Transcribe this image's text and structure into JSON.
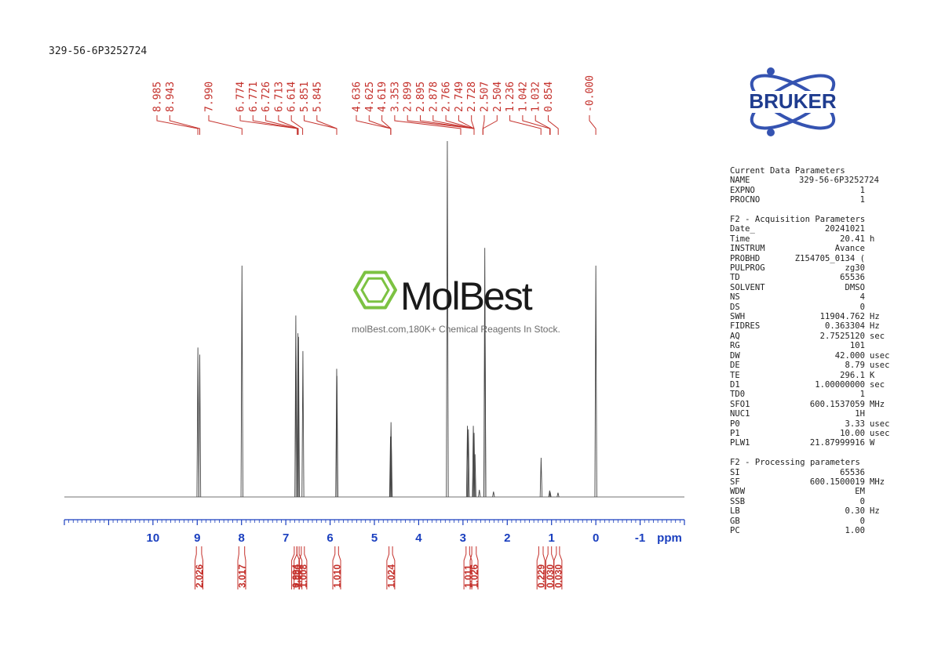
{
  "header": {
    "sample_name": "329-56-6P3252724"
  },
  "logo": {
    "text": "BRUKER",
    "color": "#1f3c8f",
    "ring_color": "#3553b1"
  },
  "watermark": {
    "brand": "MolBest",
    "tagline": "molBest.com,180K+ Chemical Reagents In Stock.",
    "brand_color": "#1a1a1a",
    "icon_color": "#7cc242"
  },
  "parameters": {
    "current": {
      "title": "Current Data Parameters",
      "rows": [
        {
          "key": "NAME",
          "value": "329-56-6P3252724",
          "unit": ""
        },
        {
          "key": "EXPNO",
          "value": "1",
          "unit": ""
        },
        {
          "key": "PROCNO",
          "value": "1",
          "unit": ""
        }
      ]
    },
    "acquisition": {
      "title": "F2 - Acquisition Parameters",
      "rows": [
        {
          "key": "Date_",
          "value": "20241021",
          "unit": ""
        },
        {
          "key": "Time",
          "value": "20.41",
          "unit": "h"
        },
        {
          "key": "INSTRUM",
          "value": "Avance",
          "unit": ""
        },
        {
          "key": "PROBHD",
          "value": "Z154705_0134 (",
          "unit": ""
        },
        {
          "key": "PULPROG",
          "value": "zg30",
          "unit": ""
        },
        {
          "key": "TD",
          "value": "65536",
          "unit": ""
        },
        {
          "key": "SOLVENT",
          "value": "DMSO",
          "unit": ""
        },
        {
          "key": "NS",
          "value": "4",
          "unit": ""
        },
        {
          "key": "DS",
          "value": "0",
          "unit": ""
        },
        {
          "key": "SWH",
          "value": "11904.762",
          "unit": "Hz"
        },
        {
          "key": "FIDRES",
          "value": "0.363304",
          "unit": "Hz"
        },
        {
          "key": "AQ",
          "value": "2.7525120",
          "unit": "sec"
        },
        {
          "key": "RG",
          "value": "101",
          "unit": ""
        },
        {
          "key": "DW",
          "value": "42.000",
          "unit": "usec"
        },
        {
          "key": "DE",
          "value": "8.79",
          "unit": "usec"
        },
        {
          "key": "TE",
          "value": "296.1",
          "unit": "K"
        },
        {
          "key": "D1",
          "value": "1.00000000",
          "unit": "sec"
        },
        {
          "key": "TD0",
          "value": "1",
          "unit": ""
        },
        {
          "key": "SFO1",
          "value": "600.1537059",
          "unit": "MHz"
        },
        {
          "key": "NUC1",
          "value": "1H",
          "unit": ""
        },
        {
          "key": "P0",
          "value": "3.33",
          "unit": "usec"
        },
        {
          "key": "P1",
          "value": "10.00",
          "unit": "usec"
        },
        {
          "key": "PLW1",
          "value": "21.87999916",
          "unit": "W"
        }
      ]
    },
    "processing": {
      "title": "F2 - Processing parameters",
      "rows": [
        {
          "key": "SI",
          "value": "65536",
          "unit": ""
        },
        {
          "key": "SF",
          "value": "600.1500019",
          "unit": "MHz"
        },
        {
          "key": "WDW",
          "value": "EM",
          "unit": ""
        },
        {
          "key": "SSB",
          "value": "0",
          "unit": ""
        },
        {
          "key": "LB",
          "value": "0.30",
          "unit": "Hz"
        },
        {
          "key": "GB",
          "value": "0",
          "unit": ""
        },
        {
          "key": "PC",
          "value": "1.00",
          "unit": ""
        }
      ]
    }
  },
  "chart_data": {
    "type": "line",
    "xlabel": "ppm",
    "xlim": [
      12.0,
      -2.0
    ],
    "x_reversed": true,
    "ticks": [
      10,
      9,
      8,
      7,
      6,
      5,
      4,
      3,
      2,
      1,
      0,
      -1
    ],
    "tick_labels": [
      "10",
      "9",
      "8",
      "7",
      "6",
      "5",
      "4",
      "3",
      "2",
      "1",
      "0",
      "-1"
    ],
    "axis_color": "#1a3fbf",
    "peak_label_color": "#c4302b",
    "integral_color": "#c4302b",
    "trace_color": "#444444",
    "ylim": [
      0,
      1.0
    ],
    "peak_labels": [
      "8.985",
      "8.943",
      "7.990",
      "6.774",
      "6.771",
      "6.726",
      "6.713",
      "6.614",
      "5.851",
      "5.845",
      "4.636",
      "4.625",
      "4.619",
      "3.353",
      "2.899",
      "2.895",
      "2.878",
      "2.766",
      "2.749",
      "2.728",
      "2.507",
      "2.504",
      "1.236",
      "1.042",
      "1.032",
      "0.854",
      "-0.000"
    ],
    "peak_label_targets": [
      8.985,
      8.943,
      7.99,
      6.74,
      6.74,
      6.72,
      6.72,
      6.62,
      5.85,
      5.85,
      4.63,
      4.63,
      4.63,
      3.05,
      2.75,
      2.75,
      2.75,
      2.75,
      2.75,
      2.75,
      2.55,
      2.55,
      1.24,
      1.04,
      1.03,
      0.85,
      0.0
    ],
    "integrals": [
      {
        "label": "2.026",
        "from": 9.02,
        "to": 8.9
      },
      {
        "label": "3.017",
        "from": 8.06,
        "to": 7.93
      },
      {
        "label": "0.994",
        "from": 6.81,
        "to": 6.75
      },
      {
        "label": "1.000",
        "from": 6.75,
        "to": 6.7
      },
      {
        "label": "1.008",
        "from": 6.65,
        "to": 6.58
      },
      {
        "label": "1.010",
        "from": 5.89,
        "to": 5.81
      },
      {
        "label": "1.024",
        "from": 4.67,
        "to": 4.59
      },
      {
        "label": "1.011",
        "from": 2.93,
        "to": 2.85
      },
      {
        "label": "1.026",
        "from": 2.8,
        "to": 2.7
      },
      {
        "label": "0.229",
        "from": 1.29,
        "to": 1.19
      },
      {
        "label": "0.030",
        "from": 1.08,
        "to": 1.0
      },
      {
        "label": "0.030",
        "from": 0.89,
        "to": 0.82
      }
    ],
    "peaks": [
      {
        "ppm": 8.985,
        "height": 0.42
      },
      {
        "ppm": 8.943,
        "height": 0.4
      },
      {
        "ppm": 7.99,
        "height": 0.65
      },
      {
        "ppm": 6.774,
        "height": 0.51
      },
      {
        "ppm": 6.771,
        "height": 0.42
      },
      {
        "ppm": 6.726,
        "height": 0.46
      },
      {
        "ppm": 6.713,
        "height": 0.45
      },
      {
        "ppm": 6.614,
        "height": 0.41
      },
      {
        "ppm": 5.851,
        "height": 0.36
      },
      {
        "ppm": 5.845,
        "height": 0.34
      },
      {
        "ppm": 4.636,
        "height": 0.17
      },
      {
        "ppm": 4.625,
        "height": 0.21
      },
      {
        "ppm": 4.619,
        "height": 0.17
      },
      {
        "ppm": 3.353,
        "height": 1.0
      },
      {
        "ppm": 2.899,
        "height": 0.2
      },
      {
        "ppm": 2.878,
        "height": 0.19
      },
      {
        "ppm": 2.766,
        "height": 0.2
      },
      {
        "ppm": 2.749,
        "height": 0.18
      },
      {
        "ppm": 2.728,
        "height": 0.12
      },
      {
        "ppm": 2.507,
        "height": 0.7
      },
      {
        "ppm": 2.504,
        "height": 0.55
      },
      {
        "ppm": 2.63,
        "height": 0.02
      },
      {
        "ppm": 2.31,
        "height": 0.015
      },
      {
        "ppm": 1.236,
        "height": 0.11
      },
      {
        "ppm": 1.042,
        "height": 0.018
      },
      {
        "ppm": 1.032,
        "height": 0.014
      },
      {
        "ppm": 0.854,
        "height": 0.012
      },
      {
        "ppm": 0.0,
        "height": 0.65
      }
    ]
  }
}
